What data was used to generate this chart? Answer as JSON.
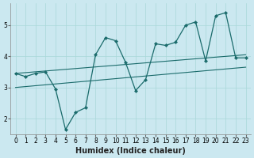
{
  "xlabel": "Humidex (Indice chaleur)",
  "ylabel": "",
  "background_color": "#cbe8f0",
  "line_color": "#1a6b6b",
  "x": [
    0,
    1,
    2,
    3,
    4,
    5,
    6,
    7,
    8,
    9,
    10,
    11,
    12,
    13,
    14,
    15,
    16,
    17,
    18,
    19,
    20,
    21,
    22,
    23
  ],
  "y_data": [
    3.45,
    3.35,
    3.45,
    3.5,
    2.95,
    1.65,
    2.2,
    2.35,
    4.05,
    4.6,
    4.5,
    3.8,
    2.9,
    3.25,
    4.4,
    4.35,
    4.45,
    5.0,
    5.1,
    3.85,
    5.3,
    5.4,
    3.95,
    3.95
  ],
  "trend1_x": [
    0,
    23
  ],
  "trend1_y": [
    3.45,
    4.05
  ],
  "trend2_x": [
    0,
    23
  ],
  "trend2_y": [
    3.0,
    3.65
  ],
  "xlim": [
    -0.5,
    23.5
  ],
  "ylim": [
    1.5,
    5.7
  ],
  "yticks": [
    2,
    3,
    4,
    5
  ],
  "xticks": [
    0,
    1,
    2,
    3,
    4,
    5,
    6,
    7,
    8,
    9,
    10,
    11,
    12,
    13,
    14,
    15,
    16,
    17,
    18,
    19,
    20,
    21,
    22,
    23
  ],
  "grid_color": "#a8d8d8",
  "tick_fontsize": 5.5,
  "label_fontsize": 7.0
}
